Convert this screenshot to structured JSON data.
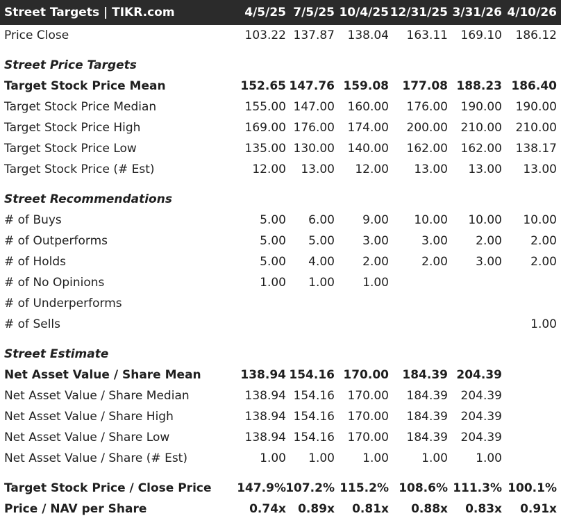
{
  "header": {
    "title": "Street Targets | TIKR.com",
    "dates": [
      "4/5/25",
      "7/5/25",
      "10/4/25",
      "12/31/25",
      "3/31/26",
      "4/10/26"
    ]
  },
  "rows": [
    {
      "type": "data",
      "label": "Price Close",
      "values": [
        "103.22",
        "137.87",
        "138.04",
        "163.11",
        "169.10",
        "186.12"
      ]
    },
    {
      "type": "section",
      "label": "Street Price Targets"
    },
    {
      "type": "data",
      "bold": true,
      "label": "Target Stock Price Mean",
      "values": [
        "152.65",
        "147.76",
        "159.08",
        "177.08",
        "188.23",
        "186.40"
      ]
    },
    {
      "type": "data",
      "label": "Target Stock Price Median",
      "values": [
        "155.00",
        "147.00",
        "160.00",
        "176.00",
        "190.00",
        "190.00"
      ]
    },
    {
      "type": "data",
      "label": "Target Stock Price High",
      "values": [
        "169.00",
        "176.00",
        "174.00",
        "200.00",
        "210.00",
        "210.00"
      ]
    },
    {
      "type": "data",
      "label": "Target Stock Price Low",
      "values": [
        "135.00",
        "130.00",
        "140.00",
        "162.00",
        "162.00",
        "138.17"
      ]
    },
    {
      "type": "data",
      "label": "Target Stock Price (# Est)",
      "values": [
        "12.00",
        "13.00",
        "12.00",
        "13.00",
        "13.00",
        "13.00"
      ]
    },
    {
      "type": "section",
      "label": "Street Recommendations"
    },
    {
      "type": "data",
      "label": "# of Buys",
      "values": [
        "5.00",
        "6.00",
        "9.00",
        "10.00",
        "10.00",
        "10.00"
      ]
    },
    {
      "type": "data",
      "label": "# of Outperforms",
      "values": [
        "5.00",
        "5.00",
        "3.00",
        "3.00",
        "2.00",
        "2.00"
      ]
    },
    {
      "type": "data",
      "label": "# of Holds",
      "values": [
        "5.00",
        "4.00",
        "2.00",
        "2.00",
        "3.00",
        "2.00"
      ]
    },
    {
      "type": "data",
      "label": "# of No Opinions",
      "values": [
        "1.00",
        "1.00",
        "1.00",
        "",
        "",
        ""
      ]
    },
    {
      "type": "data",
      "label": "# of Underperforms",
      "values": [
        "",
        "",
        "",
        "",
        "",
        ""
      ]
    },
    {
      "type": "data",
      "label": "# of Sells",
      "values": [
        "",
        "",
        "",
        "",
        "",
        "1.00"
      ]
    },
    {
      "type": "section",
      "label": "Street Estimate"
    },
    {
      "type": "data",
      "bold": true,
      "label": "Net Asset Value / Share Mean",
      "values": [
        "138.94",
        "154.16",
        "170.00",
        "184.39",
        "204.39",
        ""
      ]
    },
    {
      "type": "data",
      "label": "Net Asset Value / Share Median",
      "values": [
        "138.94",
        "154.16",
        "170.00",
        "184.39",
        "204.39",
        ""
      ]
    },
    {
      "type": "data",
      "label": "Net Asset Value / Share High",
      "values": [
        "138.94",
        "154.16",
        "170.00",
        "184.39",
        "204.39",
        ""
      ]
    },
    {
      "type": "data",
      "label": "Net Asset Value / Share Low",
      "values": [
        "138.94",
        "154.16",
        "170.00",
        "184.39",
        "204.39",
        ""
      ]
    },
    {
      "type": "data",
      "label": "Net Asset Value / Share (# Est)",
      "values": [
        "1.00",
        "1.00",
        "1.00",
        "1.00",
        "1.00",
        ""
      ]
    },
    {
      "type": "data",
      "bold": true,
      "label": "Target Stock Price / Close Price",
      "values": [
        "147.9%",
        "107.2%",
        "115.2%",
        "108.6%",
        "111.3%",
        "100.1%"
      ]
    },
    {
      "type": "data",
      "bold": true,
      "label": "Price / NAV per Share",
      "values": [
        "0.74x",
        "0.89x",
        "0.81x",
        "0.88x",
        "0.83x",
        "0.91x"
      ]
    }
  ]
}
